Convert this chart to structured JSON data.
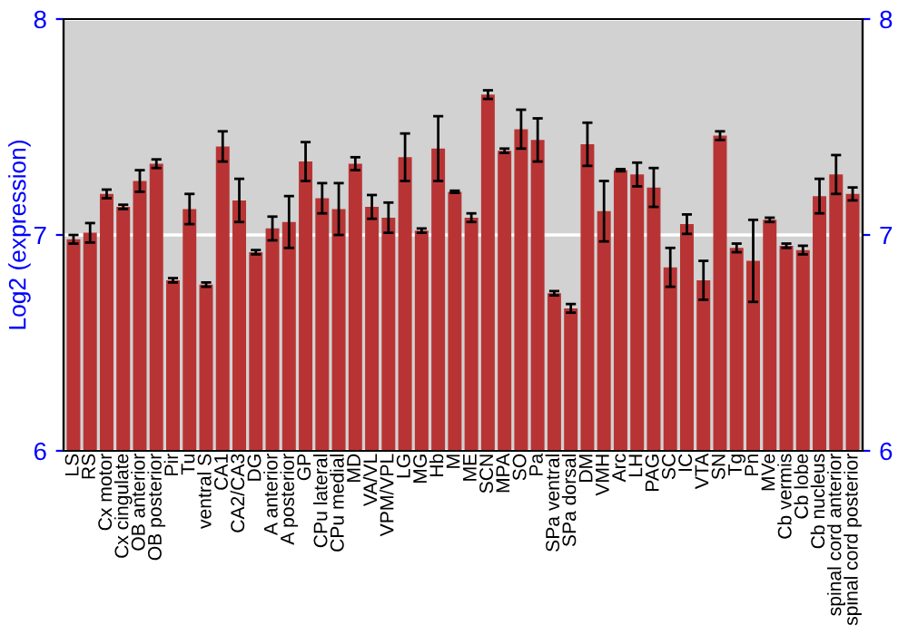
{
  "chart_data": {
    "type": "bar",
    "ylabel": "Log2 (expression)",
    "categories": [
      "LS",
      "RS",
      "Cx motor",
      "Cx cingulate",
      "OB anterior",
      "OB posterior",
      "Pir",
      "Tu",
      "ventral S",
      "CA1",
      "CA2/CA3",
      "DG",
      "A anterior",
      "A posterior",
      "GP",
      "CPu lateral",
      "CPu medial",
      "MD",
      "VA/VL",
      "VPM/VPL",
      "LG",
      "MG",
      "Hb",
      "M",
      "ME",
      "SCN",
      "MPA",
      "SO",
      "Pa",
      "SPa ventral",
      "SPa dorsal",
      "DM",
      "VMH",
      "Arc",
      "LH",
      "PAG",
      "SC",
      "IC",
      "VTA",
      "SN",
      "Tg",
      "Pn",
      "MVe",
      "Cb vermis",
      "Cb lobe",
      "Cb nucleus",
      "spinal cord anterior",
      "spinal cord posterior"
    ],
    "values": [
      6.98,
      7.01,
      7.19,
      7.13,
      7.25,
      7.33,
      6.79,
      7.12,
      6.77,
      7.41,
      7.16,
      6.92,
      7.03,
      7.06,
      7.34,
      7.17,
      7.12,
      7.33,
      7.13,
      7.08,
      7.36,
      7.02,
      7.4,
      7.2,
      7.08,
      7.65,
      7.39,
      7.49,
      7.44,
      6.73,
      6.66,
      7.42,
      7.11,
      7.3,
      7.28,
      7.22,
      6.85,
      7.05,
      6.79,
      7.46,
      6.94,
      6.88,
      7.07,
      6.95,
      6.93,
      7.18,
      7.28,
      7.19
    ],
    "errors": [
      0.02,
      0.045,
      0.02,
      0.01,
      0.05,
      0.02,
      0.01,
      0.07,
      0.01,
      0.07,
      0.1,
      0.01,
      0.055,
      0.12,
      0.09,
      0.07,
      0.12,
      0.03,
      0.055,
      0.07,
      0.11,
      0.01,
      0.15,
      0.005,
      0.02,
      0.02,
      0.01,
      0.09,
      0.1,
      0.01,
      0.02,
      0.1,
      0.14,
      0.005,
      0.055,
      0.09,
      0.09,
      0.045,
      0.09,
      0.02,
      0.02,
      0.19,
      0.01,
      0.01,
      0.02,
      0.08,
      0.09,
      0.03
    ],
    "color": "#b83434",
    "ylim": [
      6,
      8
    ],
    "yticks": [
      6,
      7,
      8
    ],
    "y2lim": [
      6,
      8
    ],
    "y2ticks": [
      6,
      7,
      8
    ],
    "grid": "y"
  }
}
